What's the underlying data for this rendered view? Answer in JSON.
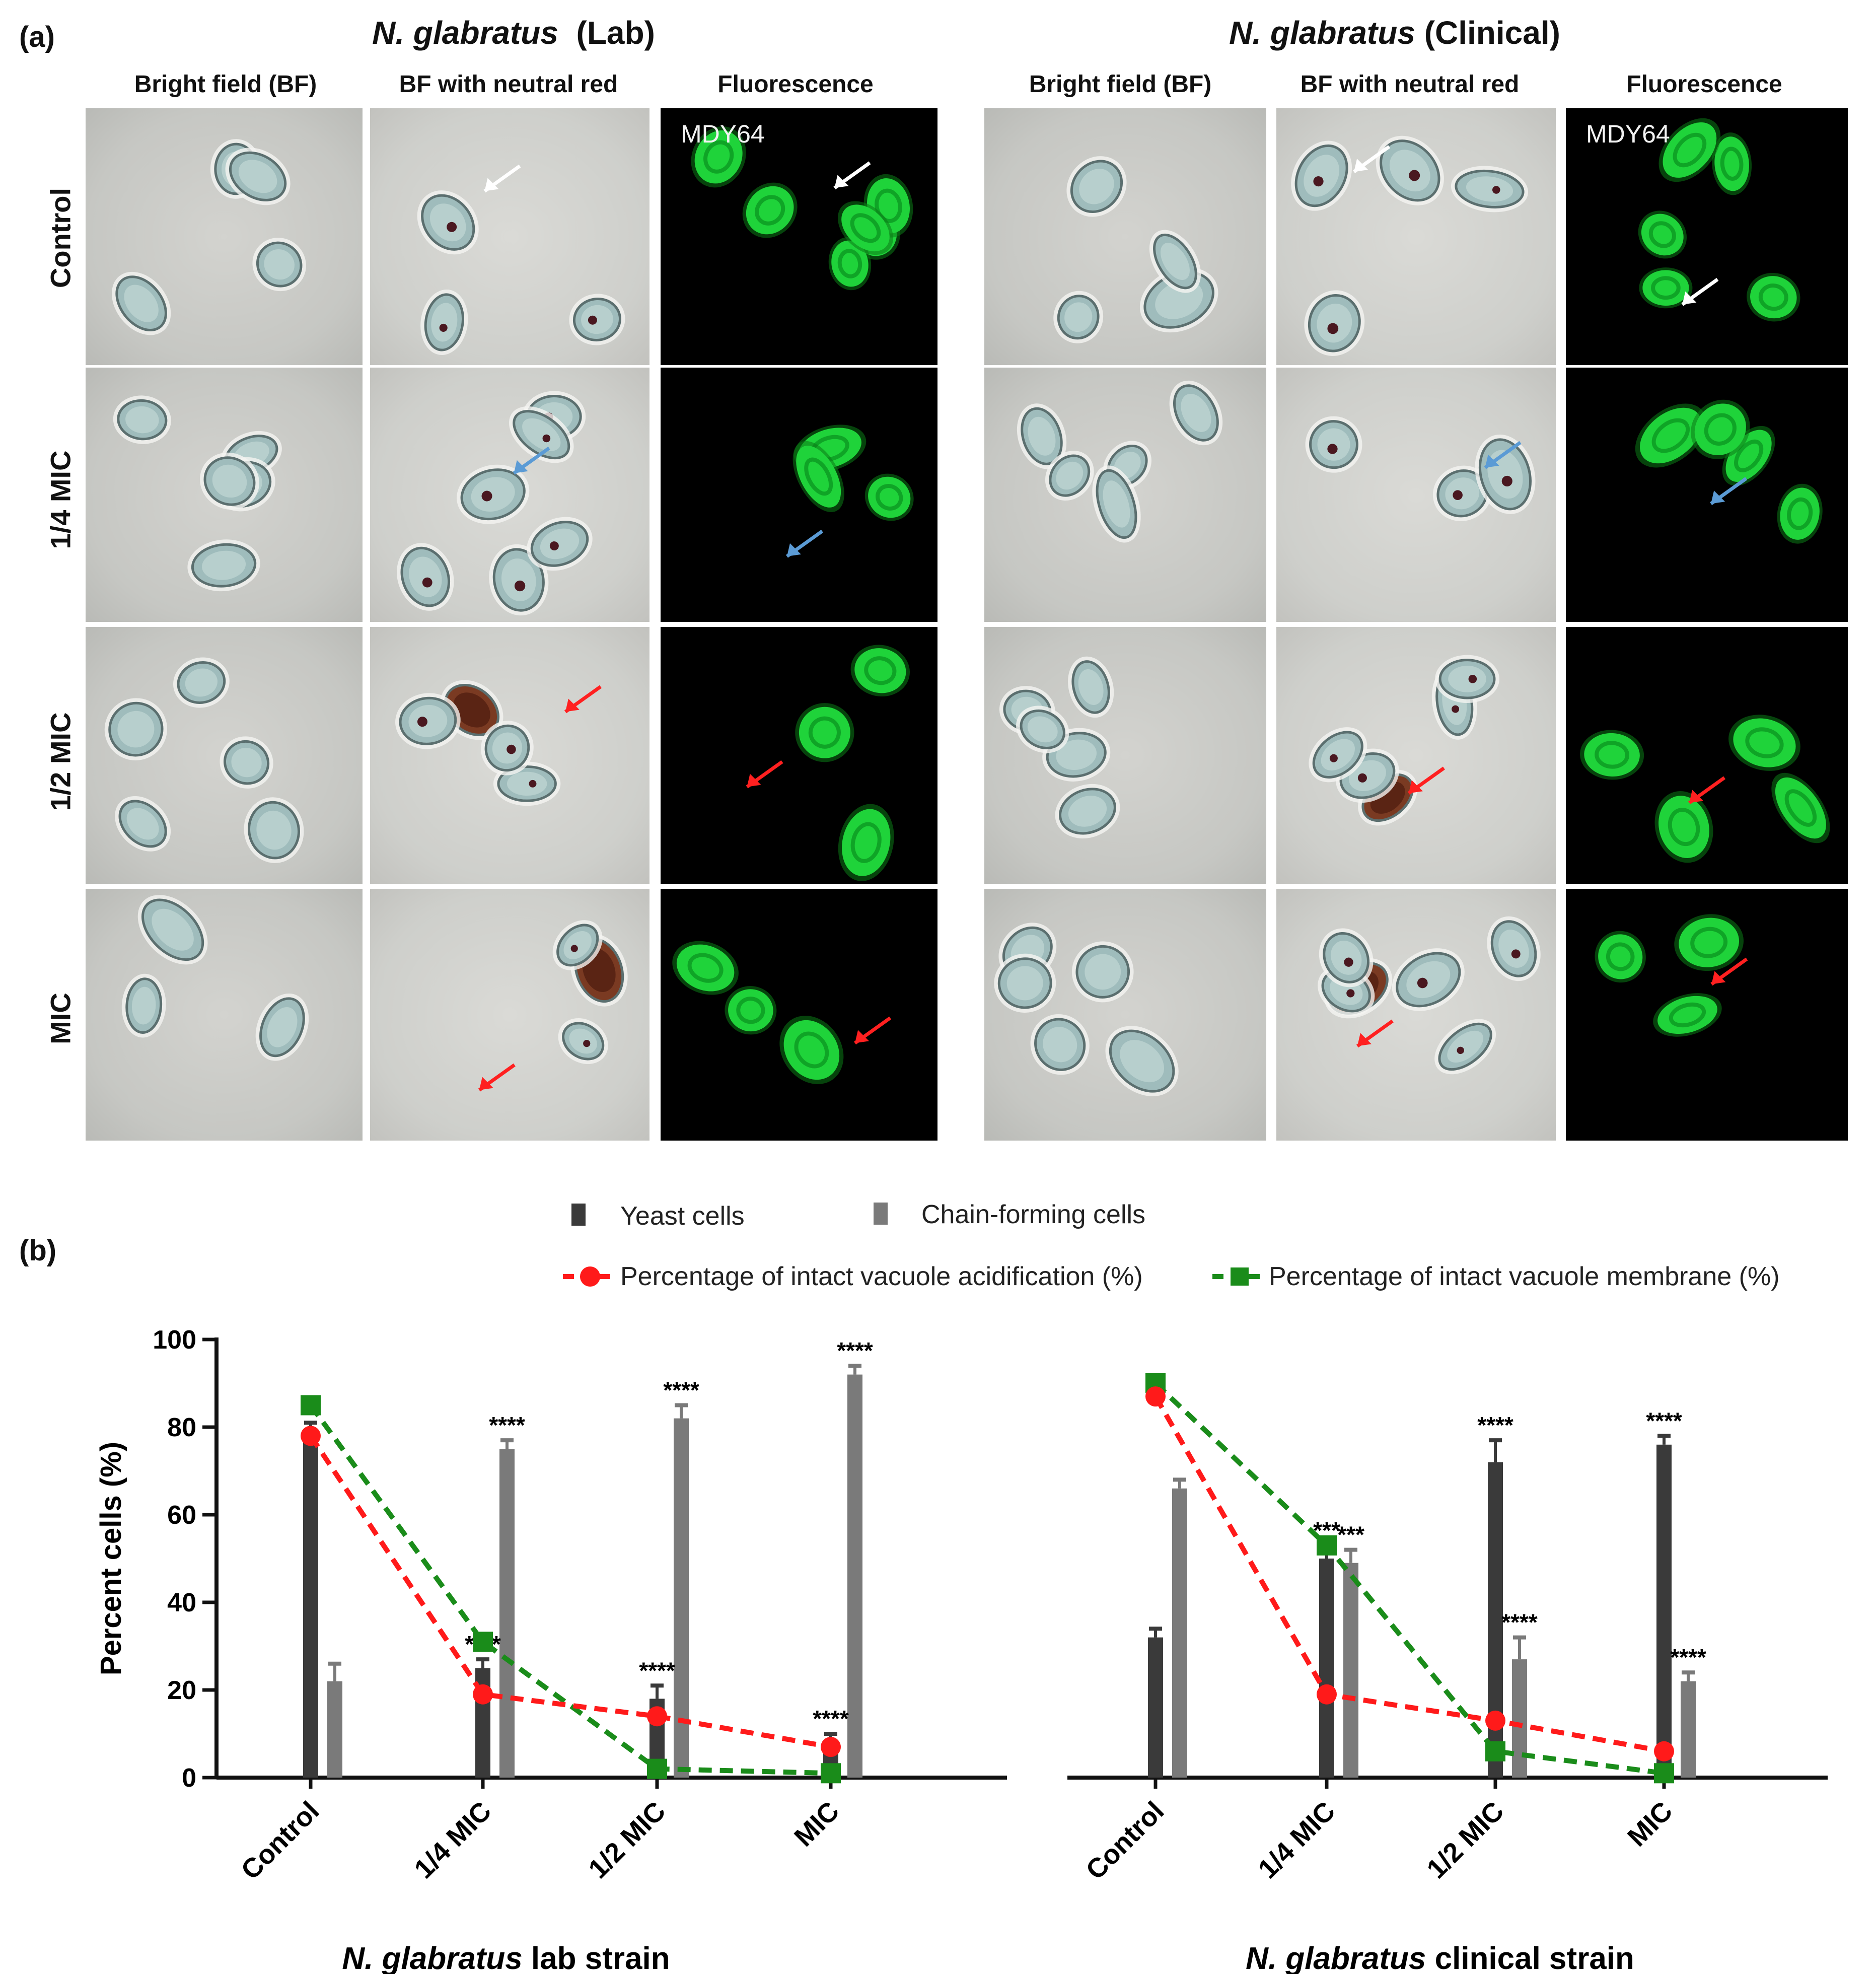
{
  "panel_a": {
    "label": "(a)",
    "strains": [
      {
        "name": "N. glabratus",
        "suffix": "(Lab)"
      },
      {
        "name": "N. glabratus",
        "suffix": "(Clinical)"
      }
    ],
    "column_headers": [
      "Bright field (BF)",
      "BF with neutral red",
      "Fluorescence"
    ],
    "row_labels": [
      "Control",
      "1/4 MIC",
      "1/2 MIC",
      "MIC"
    ],
    "fluorescence_stain_label": "MDY64"
  },
  "panel_b": {
    "label": "(b)",
    "legend": {
      "yeast": "Yeast cells",
      "chain": "Chain-forming cells",
      "acid": "Percentage of intact vacuole acidification (%)",
      "membrane": "Percentage of intact vacuole membrane (%)"
    },
    "colors": {
      "yeast": "#3a3a3a",
      "chain": "#7a7a7a",
      "acid": "#ff1a1a",
      "membrane": "#1a8c1a"
    }
  },
  "chart_data": [
    {
      "type": "bar",
      "title": "",
      "xlabel_italic": "N. glabratus",
      "xlabel_rest": "lab strain",
      "ylabel": "Percent cells (%)",
      "ylim": [
        0,
        100
      ],
      "yticks": [
        0,
        20,
        40,
        60,
        80,
        100
      ],
      "categories": [
        "Control",
        "1/4 MIC",
        "1/2 MIC",
        "MIC"
      ],
      "series": [
        {
          "name": "Yeast cells",
          "kind": "bar",
          "values": [
            78,
            25,
            18,
            8
          ],
          "errors": [
            3,
            2,
            3,
            2
          ]
        },
        {
          "name": "Chain-forming cells",
          "kind": "bar",
          "values": [
            22,
            75,
            82,
            92
          ],
          "errors": [
            4,
            2,
            3,
            2
          ]
        },
        {
          "name": "Percentage of intact vacuole acidification (%)",
          "kind": "line",
          "values": [
            78,
            19,
            14,
            7
          ]
        },
        {
          "name": "Percentage of intact vacuole membrane (%)",
          "kind": "line",
          "values": [
            85,
            31,
            2,
            1
          ]
        }
      ],
      "annotations": [
        {
          "category": "1/4 MIC",
          "series": "Yeast cells",
          "text": "****"
        },
        {
          "category": "1/4 MIC",
          "series": "Chain-forming cells",
          "text": "****"
        },
        {
          "category": "1/2 MIC",
          "series": "Yeast cells",
          "text": "****"
        },
        {
          "category": "1/2 MIC",
          "series": "Chain-forming cells",
          "text": "****"
        },
        {
          "category": "MIC",
          "series": "Yeast cells",
          "text": "****"
        },
        {
          "category": "MIC",
          "series": "Chain-forming cells",
          "text": "****"
        }
      ]
    },
    {
      "type": "bar",
      "title": "",
      "xlabel_italic": "N. glabratus",
      "xlabel_rest": "clinical strain",
      "ylabel": "",
      "ylim": [
        0,
        100
      ],
      "categories": [
        "Control",
        "1/4 MIC",
        "1/2 MIC",
        "MIC"
      ],
      "series": [
        {
          "name": "Yeast cells",
          "kind": "bar",
          "values": [
            32,
            50,
            72,
            76
          ],
          "errors": [
            2,
            3,
            5,
            2
          ]
        },
        {
          "name": "Chain-forming cells",
          "kind": "bar",
          "values": [
            66,
            49,
            27,
            22
          ],
          "errors": [
            2,
            3,
            5,
            2
          ]
        },
        {
          "name": "Percentage of intact vacuole acidification (%)",
          "kind": "line",
          "values": [
            87,
            19,
            13,
            6
          ]
        },
        {
          "name": "Percentage of intact vacuole membrane (%)",
          "kind": "line",
          "values": [
            90,
            53,
            6,
            1
          ]
        }
      ],
      "annotations": [
        {
          "category": "1/4 MIC",
          "series": "Yeast cells",
          "text": "***"
        },
        {
          "category": "1/4 MIC",
          "series": "Chain-forming cells",
          "text": "***"
        },
        {
          "category": "1/2 MIC",
          "series": "Yeast cells",
          "text": "****"
        },
        {
          "category": "1/2 MIC",
          "series": "Chain-forming cells",
          "text": "****"
        },
        {
          "category": "MIC",
          "series": "Yeast cells",
          "text": "****"
        },
        {
          "category": "MIC",
          "series": "Chain-forming cells",
          "text": "****"
        }
      ]
    }
  ]
}
